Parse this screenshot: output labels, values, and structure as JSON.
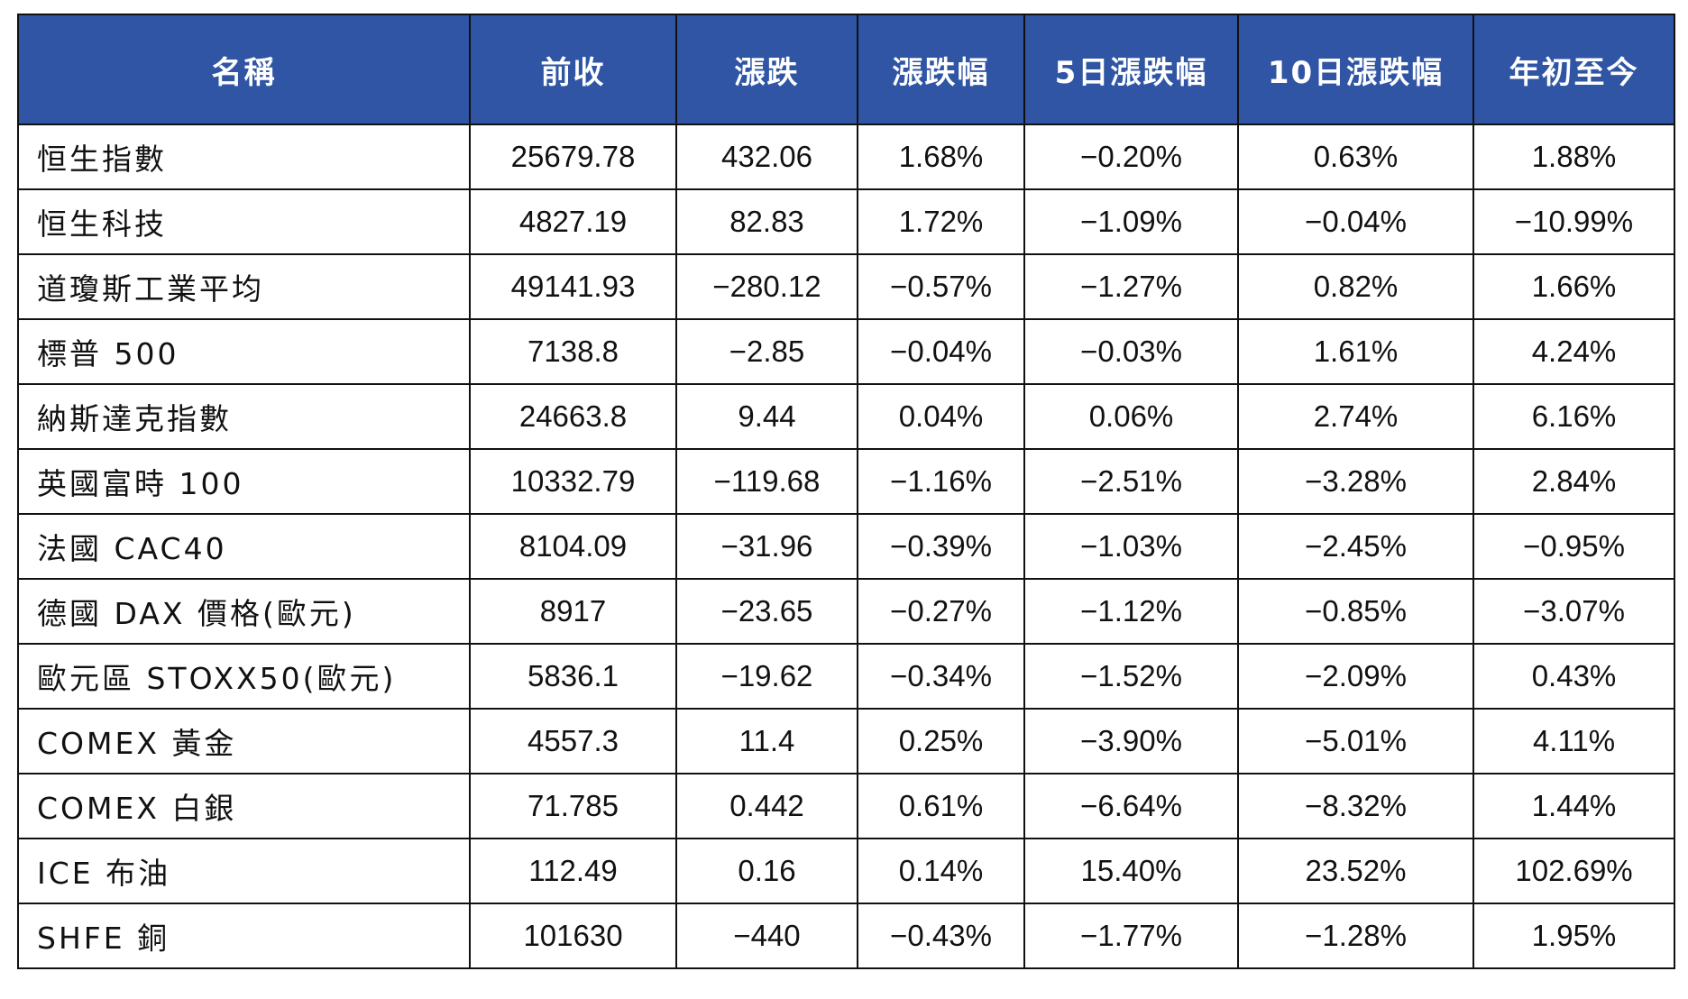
{
  "table": {
    "headers": [
      "名稱",
      "前收",
      "漲跌",
      "漲跌幅",
      "5日漲跌幅",
      "10日漲跌幅",
      "年初至今"
    ],
    "rows": [
      [
        "恒生指數",
        "25679.78",
        "432.06",
        "1.68%",
        "−0.20%",
        "0.63%",
        "1.88%"
      ],
      [
        "恒生科技",
        "4827.19",
        "82.83",
        "1.72%",
        "−1.09%",
        "−0.04%",
        "−10.99%"
      ],
      [
        "道瓊斯工業平均",
        "49141.93",
        "−280.12",
        "−0.57%",
        "−1.27%",
        "0.82%",
        "1.66%"
      ],
      [
        "標普 500",
        "7138.8",
        "−2.85",
        "−0.04%",
        "−0.03%",
        "1.61%",
        "4.24%"
      ],
      [
        "納斯達克指數",
        "24663.8",
        "9.44",
        "0.04%",
        "0.06%",
        "2.74%",
        "6.16%"
      ],
      [
        "英國富時 100",
        "10332.79",
        "−119.68",
        "−1.16%",
        "−2.51%",
        "−3.28%",
        "2.84%"
      ],
      [
        "法國 CAC40",
        "8104.09",
        "−31.96",
        "−0.39%",
        "−1.03%",
        "−2.45%",
        "−0.95%"
      ],
      [
        "德國 DAX 價格(歐元)",
        "8917",
        "−23.65",
        "−0.27%",
        "−1.12%",
        "−0.85%",
        "−3.07%"
      ],
      [
        "歐元區 STOXX50(歐元)",
        "5836.1",
        "−19.62",
        "−0.34%",
        "−1.52%",
        "−2.09%",
        "0.43%"
      ],
      [
        "COMEX 黃金",
        "4557.3",
        "11.4",
        "0.25%",
        "−3.90%",
        "−5.01%",
        "4.11%"
      ],
      [
        "COMEX 白銀",
        "71.785",
        "0.442",
        "0.61%",
        "−6.64%",
        "−8.32%",
        "1.44%"
      ],
      [
        "ICE 布油",
        "112.49",
        "0.16",
        "0.14%",
        "15.40%",
        "23.52%",
        "102.69%"
      ],
      [
        "SHFE 銅",
        "101630",
        "−440",
        "−0.43%",
        "−1.77%",
        "−1.28%",
        "1.95%"
      ]
    ]
  },
  "colors": {
    "header_bg": "#2f55a4",
    "header_text": "#ffffff",
    "border": "#111111"
  }
}
